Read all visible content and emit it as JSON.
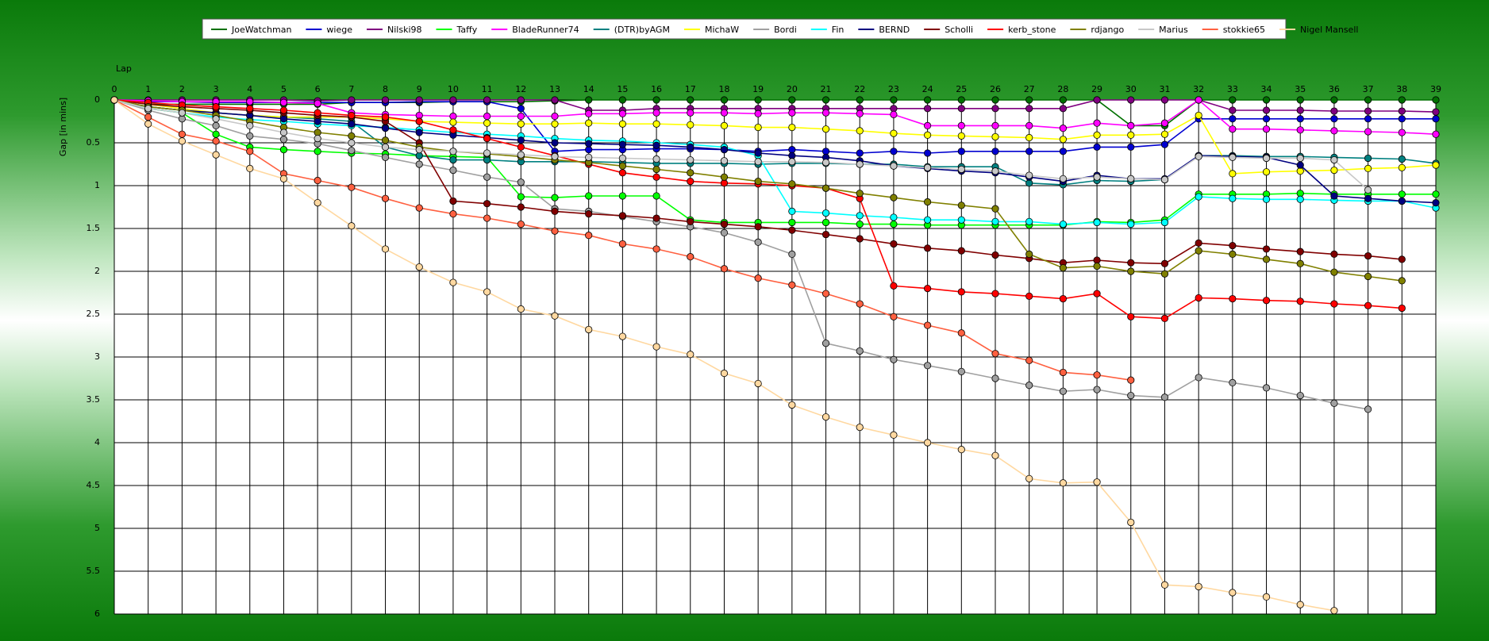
{
  "chart_data": {
    "type": "line",
    "xlabel": "Lap",
    "ylabel": "Gap [in mins]",
    "xlim": [
      0,
      39
    ],
    "ylim": [
      0,
      6
    ],
    "y_inverted": true,
    "grid": true,
    "legend_position": "top",
    "x_ticks": [
      0,
      1,
      2,
      3,
      4,
      5,
      6,
      7,
      8,
      9,
      10,
      11,
      12,
      13,
      14,
      15,
      16,
      17,
      18,
      19,
      20,
      21,
      22,
      23,
      24,
      25,
      26,
      27,
      28,
      29,
      30,
      31,
      32,
      33,
      34,
      35,
      36,
      37,
      38,
      39
    ],
    "y_ticks": [
      {
        "v": 0,
        "label": "0"
      },
      {
        "v": 0.5,
        "label": "0.5"
      },
      {
        "v": 1,
        "label": "1"
      },
      {
        "v": 1.5,
        "label": "1.5"
      },
      {
        "v": 2,
        "label": "2"
      },
      {
        "v": 2.5,
        "label": "2.5"
      },
      {
        "v": 3,
        "label": "3"
      },
      {
        "v": 3.5,
        "label": "3.5"
      },
      {
        "v": 4,
        "label": "4"
      },
      {
        "v": 4.5,
        "label": "4.5"
      },
      {
        "v": 5,
        "label": "5"
      },
      {
        "v": 5.5,
        "label": "5.5"
      },
      {
        "v": 6,
        "label": "6"
      }
    ],
    "series": [
      {
        "name": "JoeWatchman",
        "color": "#007000",
        "values": [
          0,
          0.05,
          0.05,
          0.05,
          0.05,
          0.05,
          0.05,
          0.03,
          0.03,
          0.03,
          0.02,
          0.02,
          0.02,
          0.01,
          0,
          0,
          0,
          0,
          0,
          0,
          0,
          0,
          0,
          0,
          0,
          0,
          0,
          0,
          0,
          0,
          0.3,
          0.3,
          0,
          0,
          0,
          0,
          0,
          0,
          0,
          0
        ]
      },
      {
        "name": "wiege",
        "color": "#0000d0",
        "values": [
          0,
          0.02,
          0.02,
          0.03,
          0.03,
          0.03,
          0.03,
          0.03,
          0.03,
          0.02,
          0.02,
          0.02,
          0.1,
          0.6,
          0.58,
          0.58,
          0.57,
          0.57,
          0.58,
          0.6,
          0.58,
          0.6,
          0.62,
          0.6,
          0.62,
          0.6,
          0.6,
          0.6,
          0.6,
          0.55,
          0.55,
          0.52,
          0.22,
          0.22,
          0.22,
          0.22,
          0.22,
          0.22,
          0.22,
          0.22
        ]
      },
      {
        "name": "Nilski98",
        "color": "#800080",
        "values": [
          0,
          0,
          0,
          0,
          0,
          0,
          0.01,
          0,
          0,
          0,
          0,
          0,
          0,
          0,
          0.12,
          0.12,
          0.1,
          0.1,
          0.1,
          0.1,
          0.1,
          0.1,
          0.1,
          0.1,
          0.1,
          0.1,
          0.1,
          0.1,
          0.1,
          0,
          0,
          0,
          0,
          0.12,
          0.12,
          0.12,
          0.13,
          0.13,
          0.13,
          0.14
        ]
      },
      {
        "name": "Taffy",
        "color": "#00ff00",
        "values": [
          0,
          0.1,
          0.15,
          0.4,
          0.55,
          0.58,
          0.6,
          0.62,
          0.63,
          0.65,
          0.66,
          0.67,
          1.13,
          1.14,
          1.12,
          1.12,
          1.12,
          1.4,
          1.43,
          1.43,
          1.43,
          1.43,
          1.45,
          1.45,
          1.46,
          1.46,
          1.46,
          1.46,
          1.46,
          1.42,
          1.43,
          1.4,
          1.1,
          1.1,
          1.1,
          1.09,
          1.1,
          1.1,
          1.1,
          1.1
        ]
      },
      {
        "name": "BladeRunner74",
        "color": "#ff00ff",
        "values": [
          0,
          0.01,
          0.02,
          0.02,
          0.02,
          0.03,
          0.04,
          0.15,
          0.17,
          0.18,
          0.19,
          0.19,
          0.19,
          0.19,
          0.16,
          0.16,
          0.15,
          0.15,
          0.15,
          0.16,
          0.15,
          0.15,
          0.16,
          0.17,
          0.3,
          0.3,
          0.3,
          0.3,
          0.33,
          0.27,
          0.3,
          0.27,
          0,
          0.34,
          0.34,
          0.35,
          0.36,
          0.37,
          0.38,
          0.4
        ]
      },
      {
        "name": "(DTR)byAGM",
        "color": "#008080",
        "values": [
          0,
          0.08,
          0.12,
          0.15,
          0.18,
          0.2,
          0.22,
          0.25,
          0.55,
          0.65,
          0.7,
          0.7,
          0.72,
          0.72,
          0.72,
          0.73,
          0.74,
          0.74,
          0.74,
          0.75,
          0.74,
          0.74,
          0.75,
          0.75,
          0.78,
          0.78,
          0.78,
          0.97,
          0.99,
          0.94,
          0.95,
          0.93,
          0.65,
          0.65,
          0.66,
          0.66,
          0.67,
          0.68,
          0.69,
          0.74
        ]
      },
      {
        "name": "MichaW",
        "color": "#ffff00",
        "values": [
          0,
          0.05,
          0.1,
          0.15,
          0.18,
          0.2,
          0.2,
          0.2,
          0.22,
          0.25,
          0.26,
          0.27,
          0.28,
          0.28,
          0.27,
          0.28,
          0.28,
          0.29,
          0.3,
          0.32,
          0.32,
          0.34,
          0.36,
          0.39,
          0.41,
          0.42,
          0.43,
          0.44,
          0.46,
          0.41,
          0.41,
          0.4,
          0.18,
          0.86,
          0.84,
          0.83,
          0.82,
          0.8,
          0.79,
          0.76
        ]
      },
      {
        "name": "Bordi",
        "color": "#a0a0a0",
        "values": [
          0,
          0.12,
          0.22,
          0.3,
          0.42,
          0.46,
          0.51,
          0.59,
          0.67,
          0.75,
          0.82,
          0.9,
          0.96,
          1.27,
          1.3,
          1.36,
          1.42,
          1.48,
          1.55,
          1.66,
          1.8,
          2.84,
          2.93,
          3.03,
          3.1,
          3.17,
          3.25,
          3.33,
          3.4,
          3.38,
          3.45,
          3.47,
          3.24,
          3.3,
          3.36,
          3.45,
          3.54,
          3.61,
          null,
          null
        ]
      },
      {
        "name": "Fin",
        "color": "#00ffff",
        "values": [
          0,
          0.1,
          0.15,
          0.2,
          0.23,
          0.25,
          0.28,
          0.3,
          0.32,
          0.35,
          0.38,
          0.4,
          0.42,
          0.45,
          0.47,
          0.48,
          0.5,
          0.52,
          0.55,
          0.65,
          1.3,
          1.32,
          1.35,
          1.37,
          1.4,
          1.4,
          1.42,
          1.42,
          1.45,
          1.43,
          1.45,
          1.43,
          1.13,
          1.15,
          1.16,
          1.16,
          1.17,
          1.18,
          1.18,
          1.26
        ]
      },
      {
        "name": "BERND",
        "color": "#000080",
        "values": [
          0,
          0.08,
          0.12,
          0.15,
          0.18,
          0.22,
          0.25,
          0.28,
          0.33,
          0.38,
          0.41,
          0.44,
          0.47,
          0.5,
          0.51,
          0.52,
          0.53,
          0.55,
          0.58,
          0.62,
          0.65,
          0.67,
          0.71,
          0.77,
          0.8,
          0.83,
          0.85,
          0.9,
          0.95,
          0.88,
          0.92,
          0.92,
          0.65,
          0.66,
          0.67,
          0.76,
          1.12,
          1.15,
          1.18,
          1.2
        ]
      },
      {
        "name": "Scholli",
        "color": "#800000",
        "values": [
          0,
          0.05,
          0.08,
          0.1,
          0.12,
          0.15,
          0.18,
          0.2,
          0.25,
          0.5,
          1.18,
          1.21,
          1.25,
          1.3,
          1.33,
          1.35,
          1.38,
          1.42,
          1.45,
          1.48,
          1.52,
          1.57,
          1.62,
          1.68,
          1.73,
          1.76,
          1.81,
          1.85,
          1.9,
          1.87,
          1.9,
          1.91,
          1.67,
          1.7,
          1.74,
          1.77,
          1.8,
          1.82,
          1.86,
          null
        ]
      },
      {
        "name": "kerb_stone",
        "color": "#ff0000",
        "values": [
          0,
          0.03,
          0.06,
          0.08,
          0.1,
          0.12,
          0.15,
          0.18,
          0.2,
          0.25,
          0.35,
          0.45,
          0.55,
          0.65,
          0.75,
          0.85,
          0.9,
          0.95,
          0.97,
          0.98,
          1.0,
          1.03,
          1.15,
          2.17,
          2.2,
          2.24,
          2.26,
          2.29,
          2.32,
          2.26,
          2.53,
          2.55,
          2.31,
          2.32,
          2.34,
          2.35,
          2.38,
          2.4,
          2.43,
          null
        ]
      },
      {
        "name": "rdjango",
        "color": "#808000",
        "values": [
          0,
          0.08,
          0.12,
          0.18,
          0.25,
          0.32,
          0.38,
          0.42,
          0.47,
          0.55,
          0.6,
          0.63,
          0.66,
          0.7,
          0.73,
          0.77,
          0.81,
          0.85,
          0.9,
          0.95,
          0.98,
          1.03,
          1.09,
          1.14,
          1.19,
          1.23,
          1.27,
          1.8,
          1.96,
          1.94,
          2.0,
          2.03,
          1.76,
          1.8,
          1.86,
          1.91,
          2.01,
          2.06,
          2.11,
          null
        ]
      },
      {
        "name": "Marius",
        "color": "#c8c8c8",
        "values": [
          0,
          0.1,
          0.15,
          0.22,
          0.3,
          0.38,
          0.45,
          0.5,
          0.55,
          0.58,
          0.6,
          0.62,
          0.64,
          0.66,
          0.67,
          0.68,
          0.69,
          0.7,
          0.71,
          0.72,
          0.72,
          0.73,
          0.75,
          0.77,
          0.79,
          0.81,
          0.83,
          0.88,
          0.92,
          0.9,
          0.92,
          0.93,
          0.66,
          0.67,
          0.68,
          0.68,
          0.7,
          1.05,
          null,
          null
        ]
      },
      {
        "name": "stokkie65",
        "color": "#ff6040",
        "values": [
          0,
          0.2,
          0.4,
          0.48,
          0.6,
          0.86,
          0.94,
          1.02,
          1.15,
          1.26,
          1.33,
          1.38,
          1.45,
          1.53,
          1.58,
          1.68,
          1.74,
          1.83,
          1.97,
          2.08,
          2.16,
          2.26,
          2.38,
          2.53,
          2.63,
          2.72,
          2.96,
          3.04,
          3.18,
          3.21,
          3.27,
          null,
          null,
          null,
          null,
          null,
          null,
          null,
          null,
          null
        ]
      },
      {
        "name": "Nigel Mansell",
        "color": "#ffd8a0",
        "values": [
          0,
          0.28,
          0.48,
          0.64,
          0.8,
          0.92,
          1.2,
          1.47,
          1.74,
          1.95,
          2.13,
          2.24,
          2.44,
          2.52,
          2.68,
          2.76,
          2.88,
          2.97,
          3.19,
          3.31,
          3.56,
          3.7,
          3.82,
          3.91,
          4.0,
          4.08,
          4.15,
          4.42,
          4.47,
          4.46,
          4.93,
          5.66,
          5.68,
          5.75,
          5.8,
          5.89,
          5.96,
          null,
          null,
          null
        ]
      }
    ]
  }
}
